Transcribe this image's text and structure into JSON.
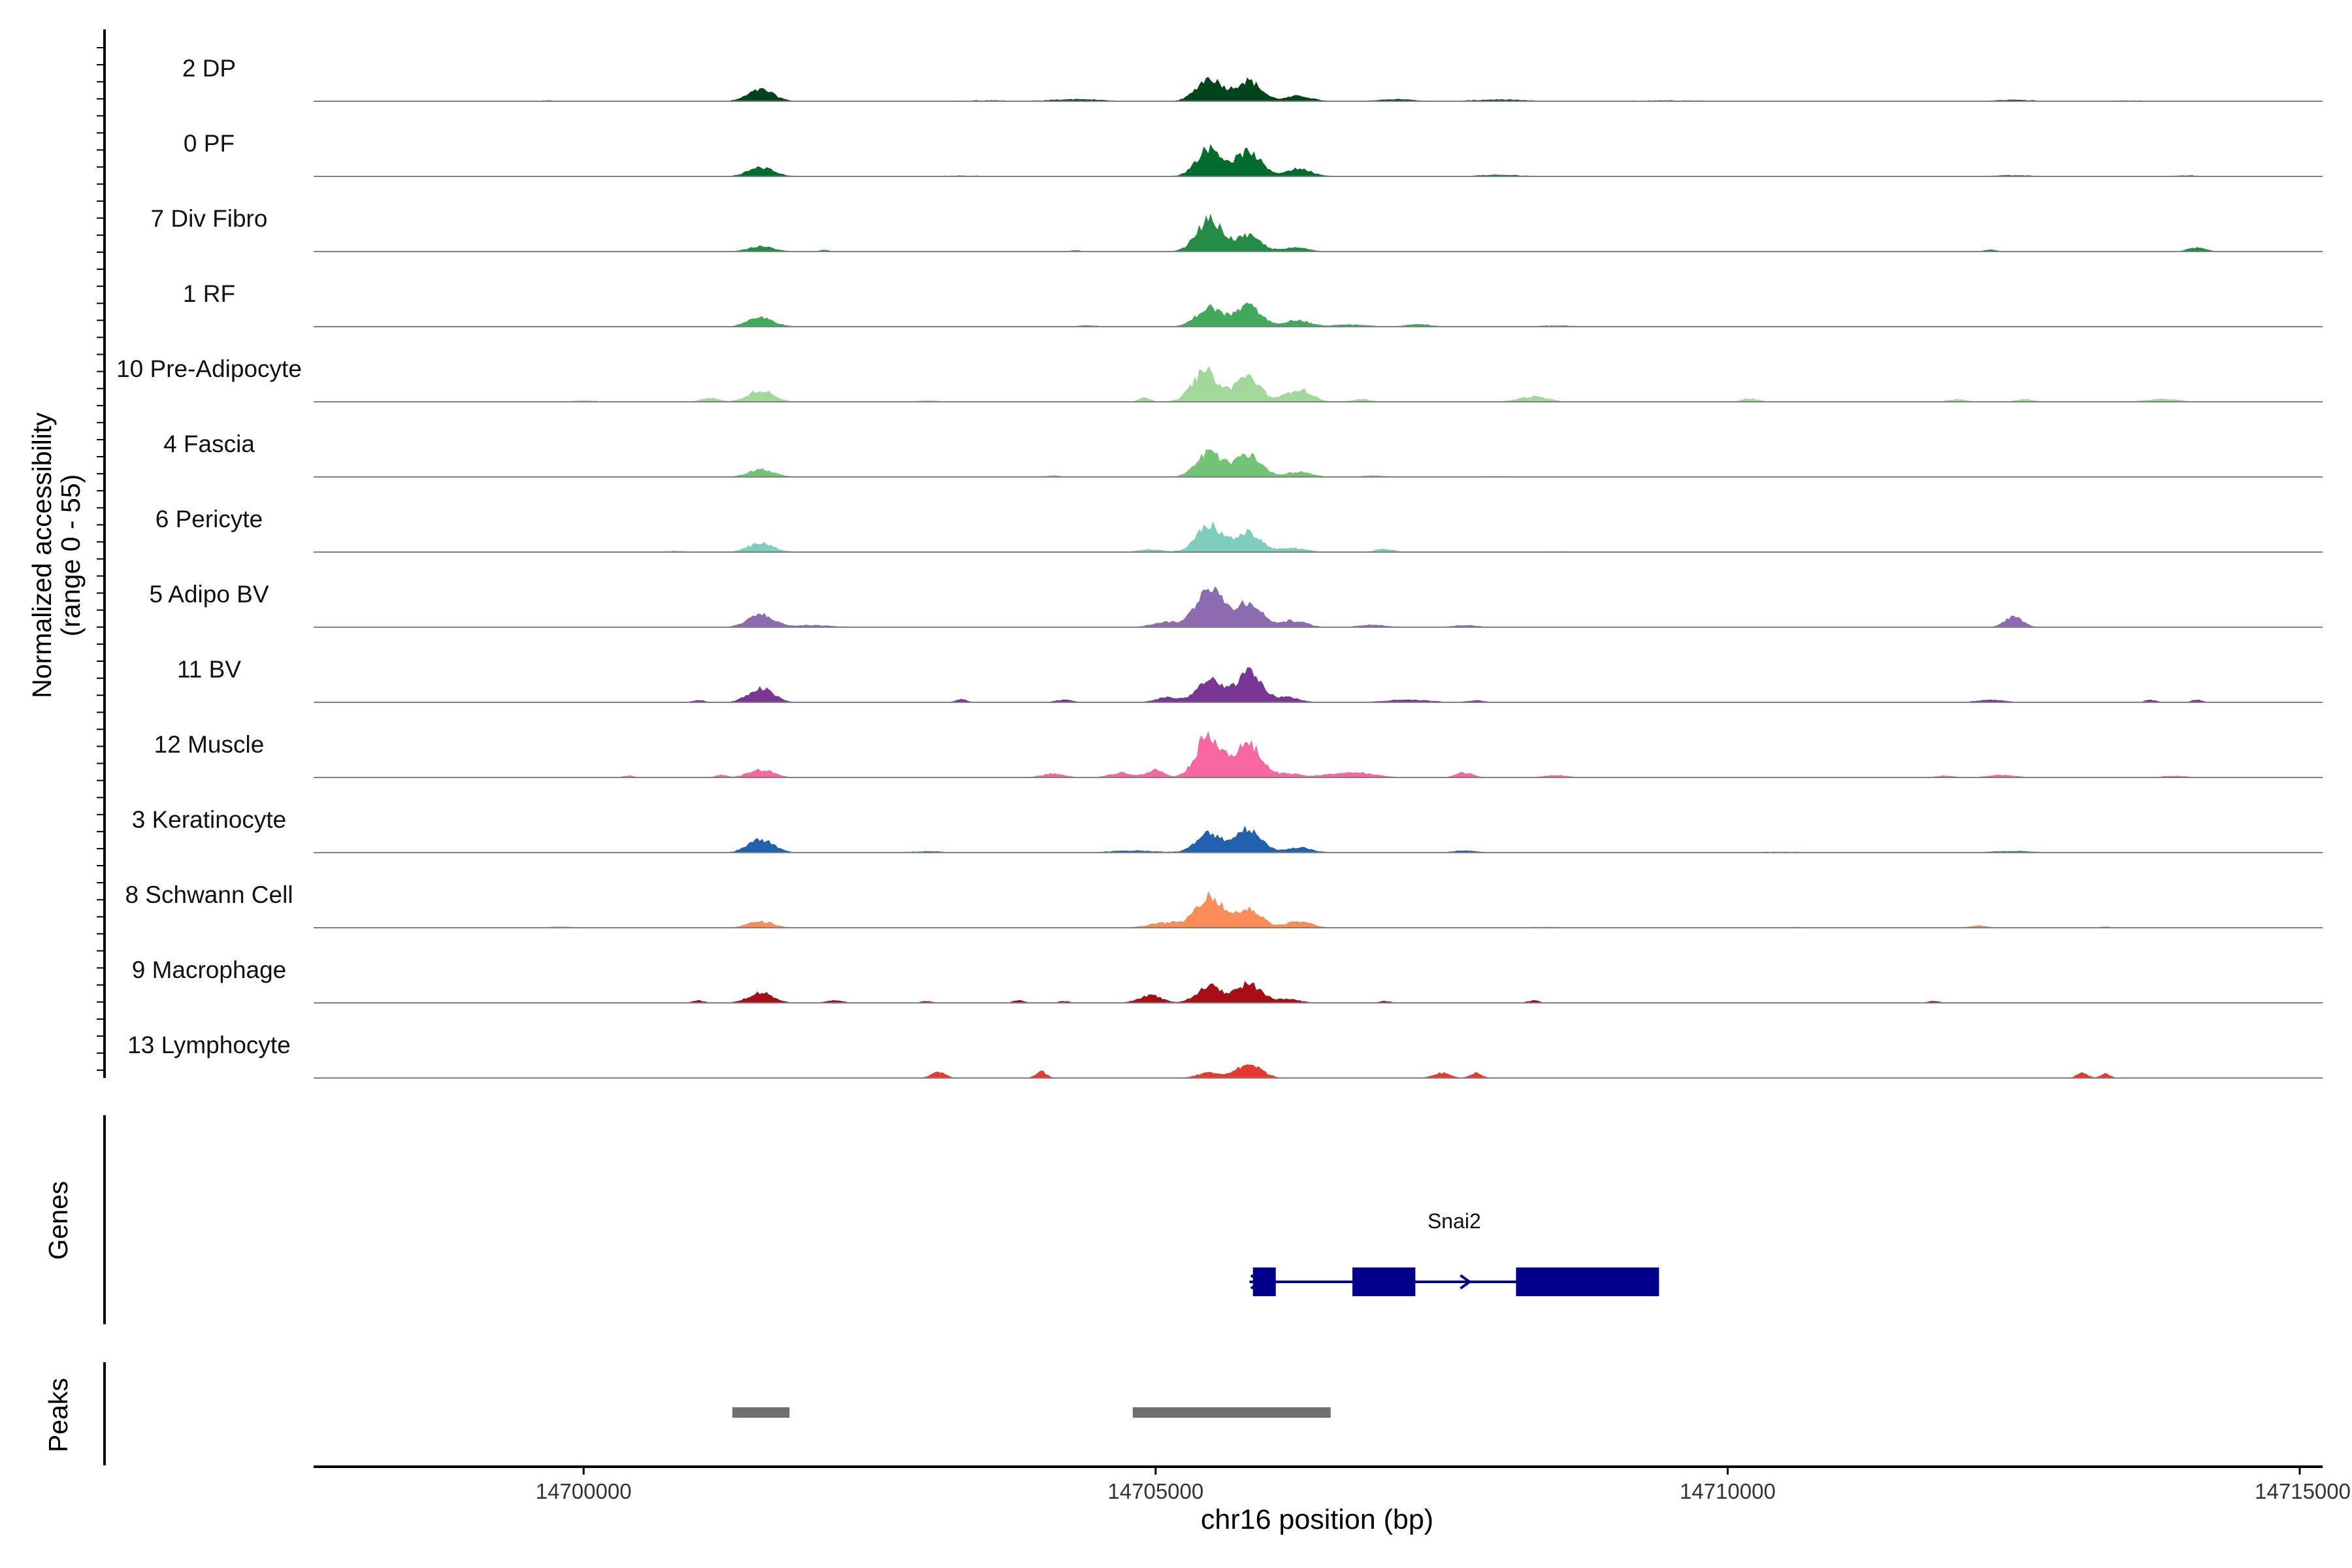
{
  "chart_data": {
    "type": "area",
    "xlabel": "chr16 position (bp)",
    "ylabel_line1": "Normalized accessibility",
    "ylabel_line2": "(range 0 - 55)",
    "y_range": [
      0,
      55
    ],
    "xlim": [
      14697640,
      14715200
    ],
    "x_ticks": [
      14700000,
      14705000,
      14710000,
      14715000
    ],
    "x_tick_labels": [
      "14700000",
      "14705000",
      "14710000",
      "14715000"
    ],
    "tracks": [
      {
        "name": "2 DP",
        "color": "#00441b",
        "peaks": [
          [
            14701550,
            9
          ],
          [
            14705470,
            18
          ],
          [
            14705810,
            16
          ],
          [
            14706250,
            4
          ]
        ],
        "extras": [
          [
            14699600,
            0.5,
            300
          ],
          [
            14703500,
            0.5,
            400
          ],
          [
            14704300,
            1.5,
            400
          ],
          [
            14707100,
            1.5,
            300
          ],
          [
            14708000,
            1.2,
            400
          ],
          [
            14709500,
            0.5,
            600
          ],
          [
            14712500,
            1.0,
            300
          ],
          [
            14713500,
            0.5,
            300
          ]
        ],
        "noise": 0.6
      },
      {
        "name": "0 PF",
        "color": "#006d2c",
        "peaks": [
          [
            14701550,
            7
          ],
          [
            14705470,
            22
          ],
          [
            14705810,
            19
          ],
          [
            14706250,
            6
          ]
        ],
        "extras": [
          [
            14699000,
            0.5,
            400
          ],
          [
            14703300,
            0.5,
            300
          ],
          [
            14708000,
            1.0,
            400
          ],
          [
            14712500,
            0.8,
            300
          ],
          [
            14714000,
            0.7,
            200
          ]
        ],
        "noise": 0.5
      },
      {
        "name": "7 Div Fibro",
        "color": "#238b45",
        "peaks": [
          [
            14701550,
            4
          ],
          [
            14705470,
            25
          ],
          [
            14705810,
            12
          ],
          [
            14706230,
            3
          ]
        ],
        "extras": [
          [
            14698900,
            1.0,
            80
          ],
          [
            14702100,
            1.2,
            80
          ],
          [
            14704300,
            1.0,
            100
          ],
          [
            14712300,
            1.5,
            100
          ],
          [
            14714100,
            3.0,
            150
          ]
        ],
        "noise": 0.3
      },
      {
        "name": "1 RF",
        "color": "#41ab5d",
        "peaks": [
          [
            14701550,
            7
          ],
          [
            14705470,
            15
          ],
          [
            14705810,
            16
          ],
          [
            14706230,
            5
          ]
        ],
        "extras": [
          [
            14704400,
            1.0,
            150
          ],
          [
            14706700,
            1.5,
            300
          ],
          [
            14707300,
            2.0,
            200
          ],
          [
            14708500,
            0.8,
            300
          ]
        ],
        "noise": 0.5
      },
      {
        "name": "10 Pre-Adipocyte",
        "color": "#a1d99b",
        "peaks": [
          [
            14701550,
            9
          ],
          [
            14705430,
            24
          ],
          [
            14705800,
            20
          ],
          [
            14706250,
            10
          ]
        ],
        "extras": [
          [
            14699300,
            1.5,
            150
          ],
          [
            14700000,
            1.0,
            200
          ],
          [
            14701100,
            3.0,
            150
          ],
          [
            14703000,
            1.0,
            200
          ],
          [
            14704900,
            3.0,
            100
          ],
          [
            14706800,
            2.0,
            150
          ],
          [
            14708300,
            4.0,
            250
          ],
          [
            14710200,
            2.5,
            150
          ],
          [
            14712000,
            2.0,
            150
          ],
          [
            14712600,
            2.0,
            150
          ],
          [
            14713800,
            2.0,
            300
          ]
        ],
        "noise": 0.3
      },
      {
        "name": "4 Fascia",
        "color": "#74c476",
        "peaks": [
          [
            14701550,
            6
          ],
          [
            14705470,
            19
          ],
          [
            14705810,
            18
          ],
          [
            14706250,
            4
          ]
        ],
        "extras": [
          [
            14704100,
            1.0,
            150
          ],
          [
            14706900,
            1.0,
            200
          ],
          [
            14708000,
            0.5,
            300
          ]
        ],
        "noise": 0.4
      },
      {
        "name": "6 Pericyte",
        "color": "#7fcdbb",
        "peaks": [
          [
            14701550,
            7
          ],
          [
            14705470,
            21
          ],
          [
            14705810,
            15
          ],
          [
            14706200,
            3
          ]
        ],
        "extras": [
          [
            14700800,
            0.8,
            200
          ],
          [
            14704950,
            2.0,
            200
          ],
          [
            14707000,
            2.5,
            150
          ],
          [
            14708500,
            0.5,
            300
          ]
        ],
        "noise": 0.4
      },
      {
        "name": "5 Adipo BV",
        "color": "#8c6bb1",
        "peaks": [
          [
            14701550,
            10
          ],
          [
            14705470,
            33
          ],
          [
            14705810,
            20
          ],
          [
            14706200,
            5
          ]
        ],
        "extras": [
          [
            14702000,
            1.5,
            300
          ],
          [
            14705100,
            4.0,
            250
          ],
          [
            14706900,
            2.0,
            200
          ],
          [
            14707700,
            1.5,
            200
          ],
          [
            14712500,
            8.0,
            150
          ]
        ],
        "noise": 0.6
      },
      {
        "name": "11 BV",
        "color": "#7a3694",
        "peaks": [
          [
            14701550,
            11
          ],
          [
            14705470,
            17
          ],
          [
            14705810,
            23
          ],
          [
            14706150,
            4
          ]
        ],
        "extras": [
          [
            14701000,
            2.0,
            100
          ],
          [
            14703300,
            2.5,
            100
          ],
          [
            14704200,
            2.0,
            150
          ],
          [
            14705100,
            4.0,
            200
          ],
          [
            14707200,
            2.0,
            400
          ],
          [
            14707800,
            1.5,
            150
          ],
          [
            14712300,
            2.0,
            250
          ],
          [
            14713700,
            2.0,
            100
          ],
          [
            14714100,
            2.0,
            100
          ]
        ],
        "noise": 0.0
      },
      {
        "name": "12 Muscle",
        "color": "#f768a1",
        "peaks": [
          [
            14701550,
            6
          ],
          [
            14705470,
            34
          ],
          [
            14705810,
            26
          ],
          [
            14706150,
            3
          ]
        ],
        "extras": [
          [
            14700400,
            1.5,
            100
          ],
          [
            14701200,
            2.0,
            100
          ],
          [
            14704100,
            3.0,
            200
          ],
          [
            14704700,
            4.0,
            200
          ],
          [
            14705000,
            6.0,
            150
          ],
          [
            14706700,
            4.0,
            400
          ],
          [
            14707700,
            4.0,
            150
          ],
          [
            14708500,
            2.0,
            200
          ],
          [
            14711900,
            1.5,
            150
          ],
          [
            14712400,
            2.0,
            250
          ],
          [
            14713900,
            1.5,
            200
          ]
        ],
        "noise": 0.0
      },
      {
        "name": "3 Keratinocyte",
        "color": "#2062ad",
        "peaks": [
          [
            14701550,
            10
          ],
          [
            14705470,
            15
          ],
          [
            14705810,
            19
          ],
          [
            14706250,
            4
          ]
        ],
        "extras": [
          [
            14699400,
            0.5,
            400
          ],
          [
            14703000,
            0.8,
            300
          ],
          [
            14704800,
            1.5,
            400
          ],
          [
            14707700,
            1.5,
            200
          ],
          [
            14710500,
            0.5,
            400
          ],
          [
            14712500,
            1.0,
            400
          ]
        ],
        "noise": 0.5
      },
      {
        "name": "8 Schwann Cell",
        "color": "#fc8d59",
        "peaks": [
          [
            14701550,
            5
          ],
          [
            14705470,
            26
          ],
          [
            14705810,
            15
          ],
          [
            14706250,
            5
          ]
        ],
        "extras": [
          [
            14699800,
            0.8,
            200
          ],
          [
            14705100,
            4.0,
            300
          ],
          [
            14708400,
            0.6,
            300
          ],
          [
            14710600,
            0.6,
            150
          ],
          [
            14712200,
            1.5,
            150
          ],
          [
            14713300,
            0.8,
            100
          ]
        ],
        "noise": 0.3
      },
      {
        "name": "9 Macrophage",
        "color": "#a50f15",
        "peaks": [
          [
            14701550,
            8
          ],
          [
            14705470,
            13
          ],
          [
            14705810,
            15
          ],
          [
            14706150,
            3
          ]
        ],
        "extras": [
          [
            14699400,
            2.0,
            100
          ],
          [
            14701000,
            2.0,
            100
          ],
          [
            14702200,
            2.0,
            150
          ],
          [
            14703000,
            1.5,
            100
          ],
          [
            14703800,
            2.0,
            100
          ],
          [
            14704200,
            1.5,
            100
          ],
          [
            14704950,
            6.0,
            200
          ],
          [
            14707000,
            1.5,
            100
          ],
          [
            14708300,
            2.0,
            100
          ],
          [
            14711800,
            1.5,
            100
          ]
        ],
        "noise": 0.0
      },
      {
        "name": "13 Lymphocyte",
        "color": "#e8392e",
        "peaks": [
          [
            14705470,
            4
          ],
          [
            14705810,
            11
          ]
        ],
        "extras": [
          [
            14703100,
            5.0,
            120
          ],
          [
            14704000,
            5.0,
            100
          ],
          [
            14707500,
            4.0,
            150
          ],
          [
            14707800,
            4.0,
            100
          ],
          [
            14713100,
            4.0,
            100
          ],
          [
            14713300,
            4.0,
            80
          ]
        ],
        "noise": 0.0
      }
    ],
    "genes_label": "Genes",
    "genes": [
      {
        "name": "Snai2",
        "start": 14705820,
        "end": 14709400,
        "strand": "+",
        "exons": [
          [
            14705850,
            14706050
          ],
          [
            14706720,
            14707270
          ],
          [
            14708150,
            14709400
          ]
        ]
      }
    ],
    "peaks_label": "Peaks",
    "peaks": [
      [
        14701300,
        14701800
      ],
      [
        14704800,
        14706530
      ]
    ],
    "peak_color": "#707070",
    "gene_color": "#00008b"
  }
}
